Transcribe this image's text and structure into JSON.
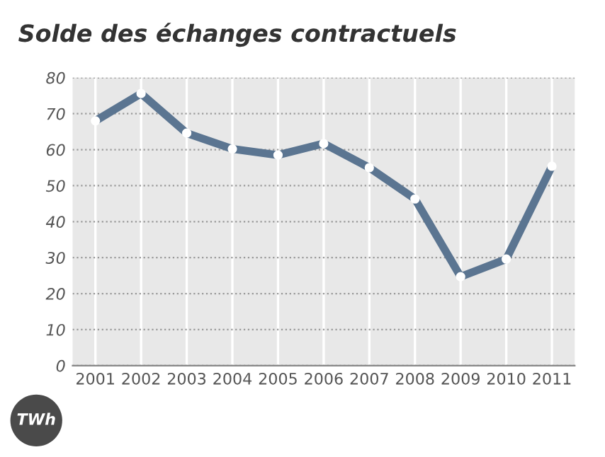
{
  "chart_data": {
    "type": "line",
    "title": "Solde des échanges contractuels",
    "ylabel": "TWh",
    "categories": [
      "2001",
      "2002",
      "2003",
      "2004",
      "2005",
      "2006",
      "2007",
      "2008",
      "2009",
      "2010",
      "2011"
    ],
    "series": [
      {
        "color": "#5b7591",
        "values": [
          68,
          75.6,
          64.6,
          60.2,
          58.5,
          61.7,
          55,
          46.3,
          24.7,
          29.6,
          55.4
        ]
      }
    ],
    "ylim": [
      0,
      80
    ],
    "yticks": [
      0,
      10,
      20,
      30,
      40,
      50,
      60,
      70,
      80
    ],
    "grid": true,
    "marker": "circle",
    "line_style": "solid",
    "legend": false
  }
}
